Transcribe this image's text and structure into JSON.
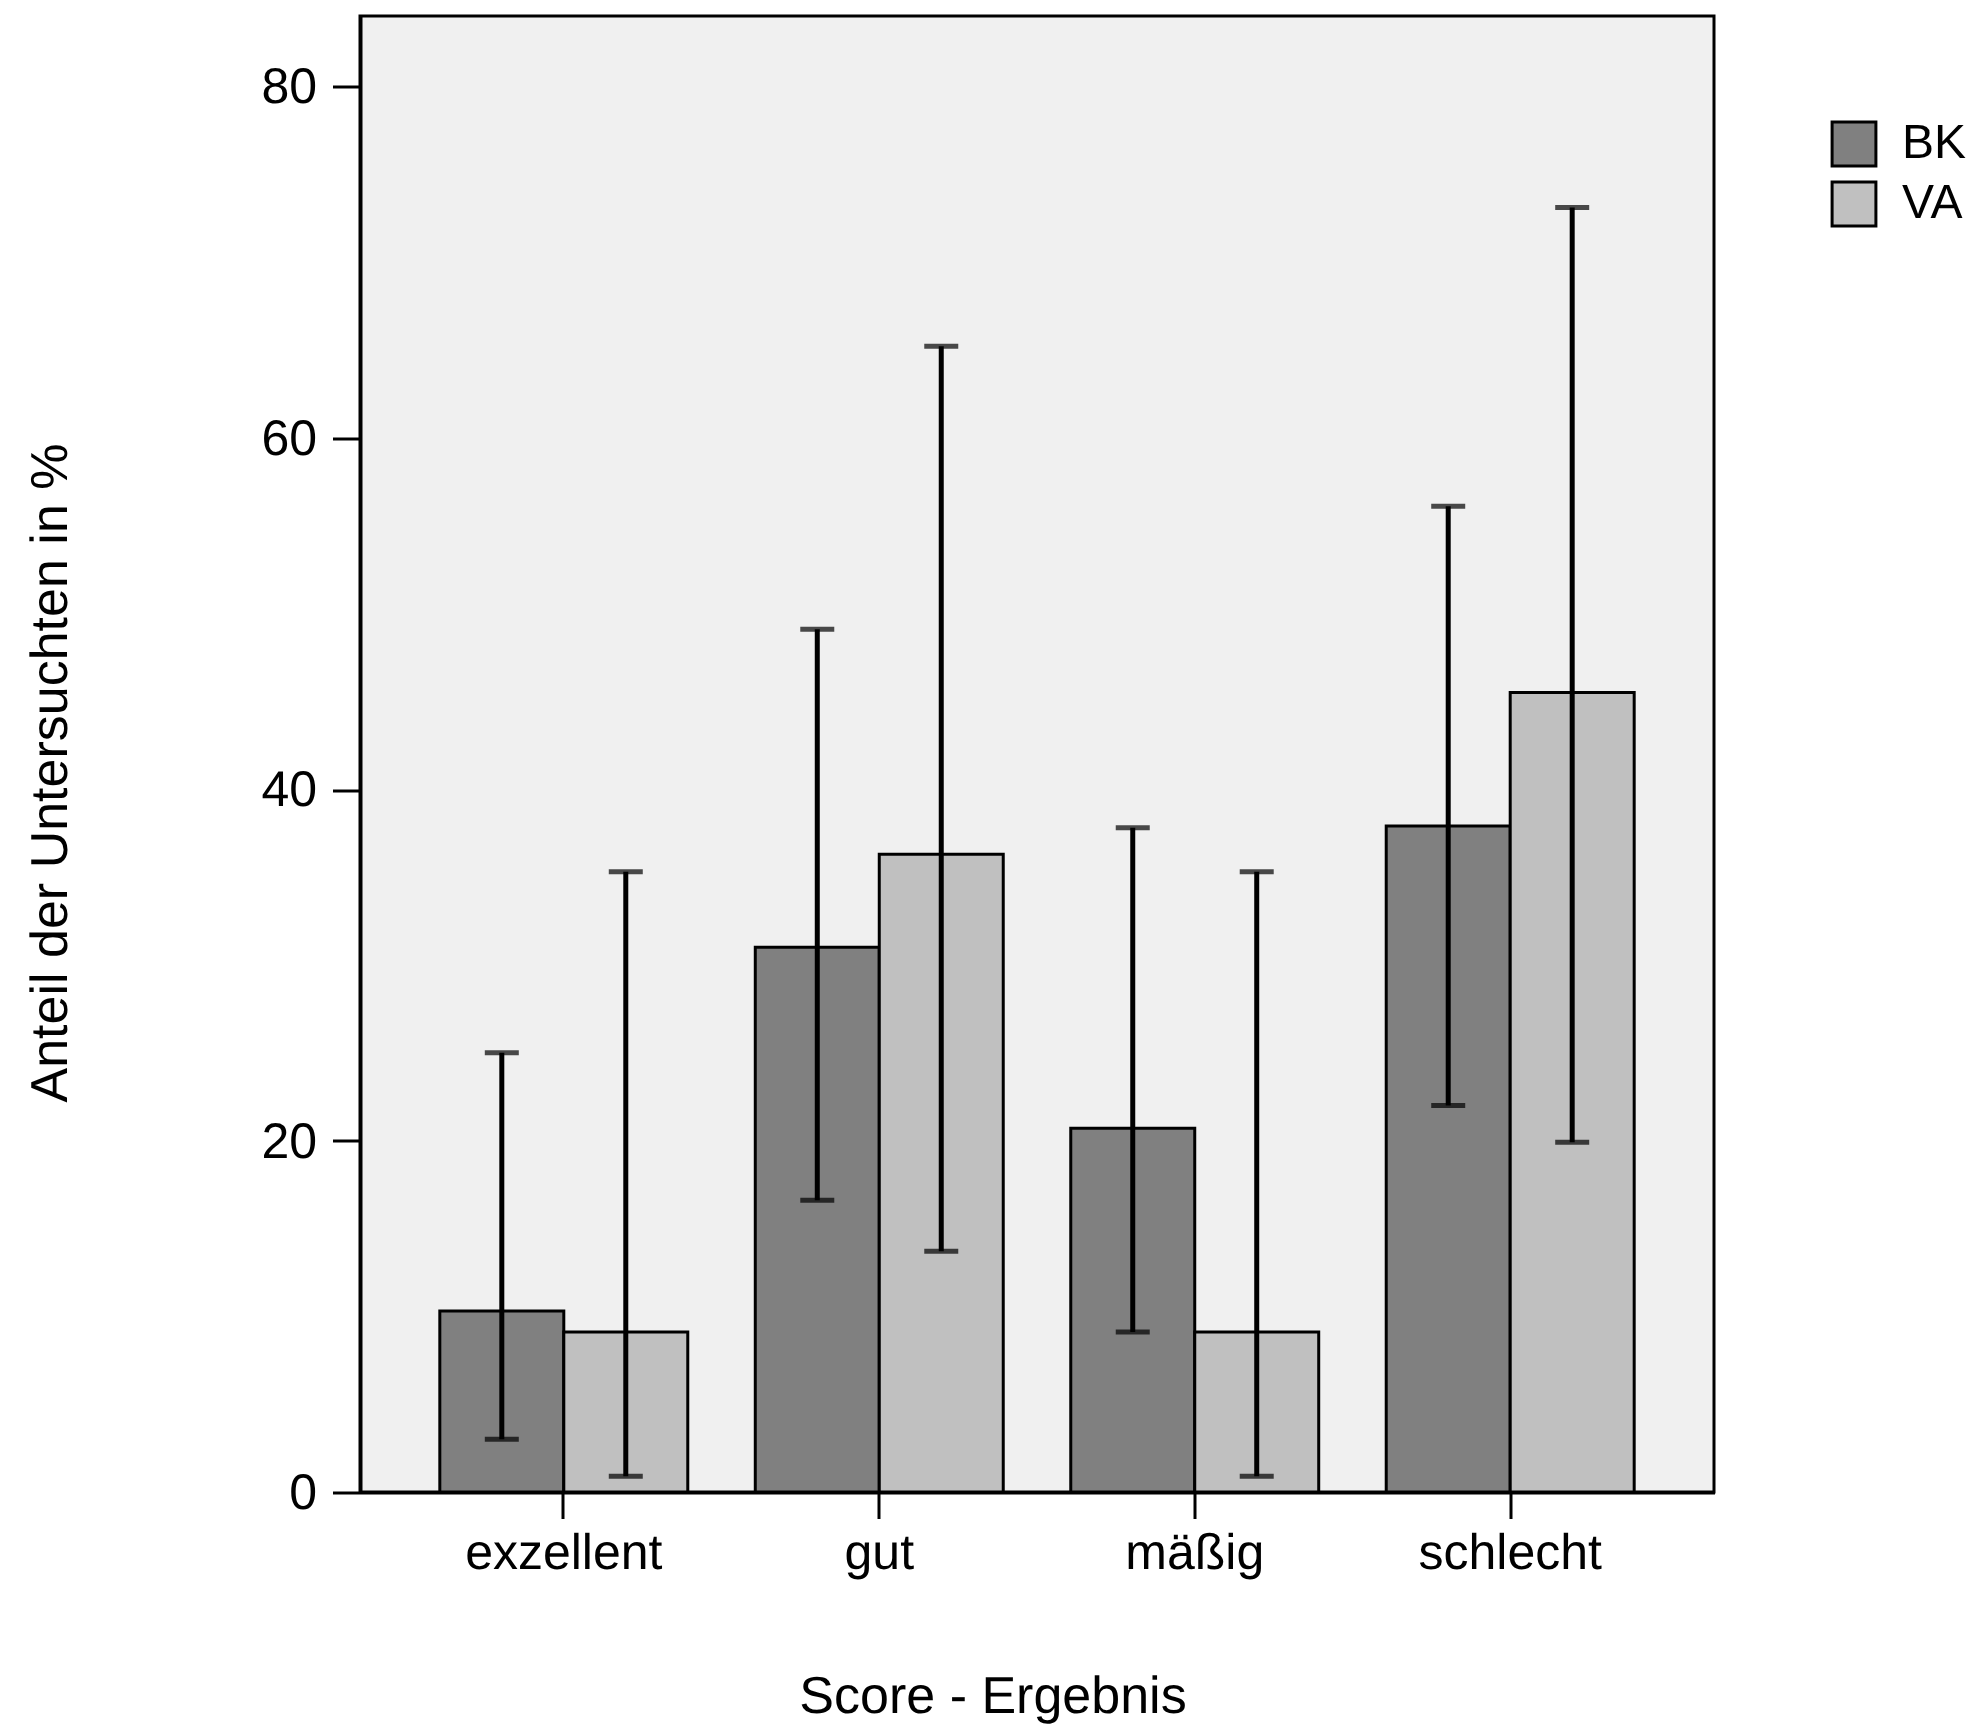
{
  "chart_data": {
    "type": "bar",
    "xlabel": "Score - Ergebnis",
    "ylabel": "Anteil der Untersuchten in %",
    "categories": [
      "exzellent",
      "gut",
      "mäßig",
      "schlecht"
    ],
    "series": [
      {
        "name": "BK",
        "color": "#808080",
        "values": [
          10.3,
          31.0,
          20.7,
          37.9
        ],
        "errors": [
          [
            3.0,
            25.0
          ],
          [
            16.6,
            49.1
          ],
          [
            9.1,
            37.8
          ],
          [
            22.0,
            56.1
          ]
        ]
      },
      {
        "name": "VA",
        "color": "#c0c0c0",
        "values": [
          9.1,
          36.3,
          9.1,
          45.5
        ],
        "errors": [
          [
            0.9,
            35.3
          ],
          [
            13.7,
            65.2
          ],
          [
            0.9,
            35.3
          ],
          [
            19.9,
            73.1
          ]
        ]
      }
    ],
    "ylim": [
      0,
      84
    ],
    "yticks": [
      0,
      20,
      40,
      60,
      80
    ],
    "grid": false,
    "legend": "top right"
  }
}
